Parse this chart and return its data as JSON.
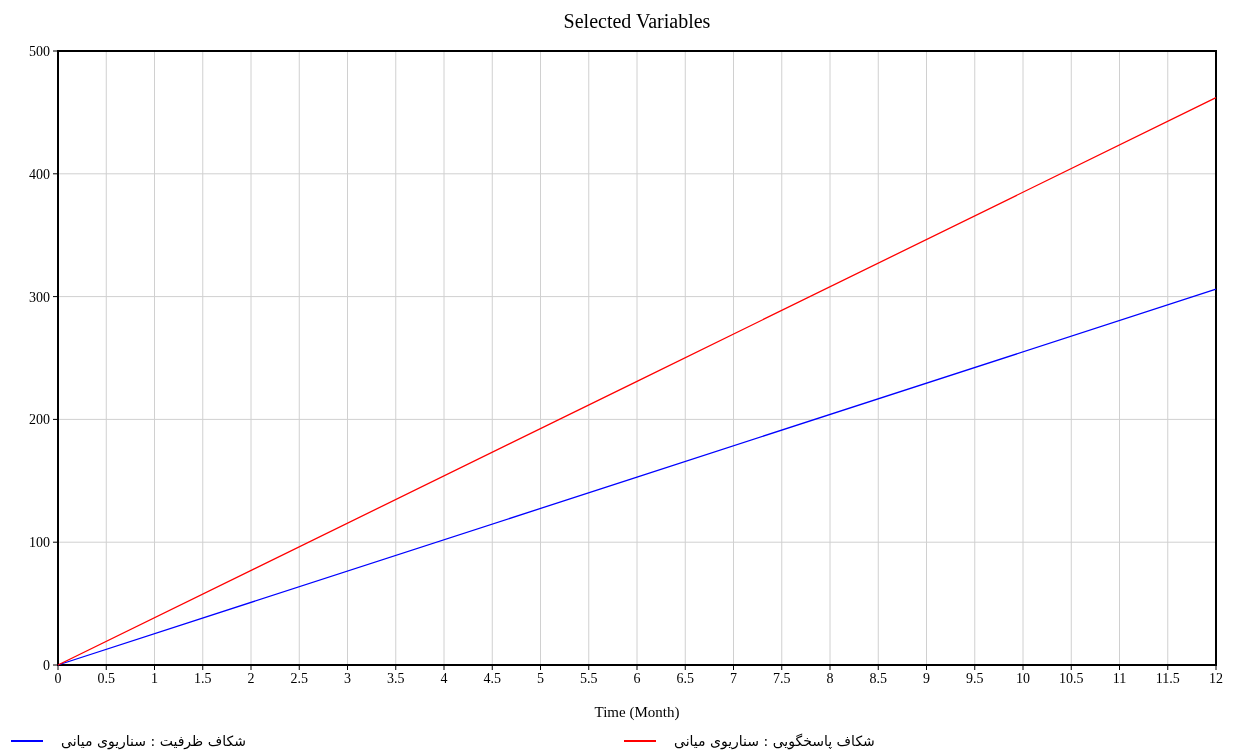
{
  "chart_data": {
    "type": "line",
    "title": "Selected Variables",
    "xlabel": "Time (Month)",
    "x": [
      0,
      6,
      12
    ],
    "series": [
      {
        "name": "شکاف ظرفیت : سناریوی میانی",
        "color": "#0000ff",
        "values": [
          0,
          153,
          306
        ]
      },
      {
        "name": "شکاف پاسخگویی : سناریوی میانی",
        "color": "#ff0000",
        "values": [
          0,
          231,
          462
        ]
      }
    ],
    "xlim": [
      0,
      12
    ],
    "xticks": [
      0,
      0.5,
      1,
      1.5,
      2,
      2.5,
      3,
      3.5,
      4,
      4.5,
      5,
      5.5,
      6,
      6.5,
      7,
      7.5,
      8,
      8.5,
      9,
      9.5,
      10,
      10.5,
      11,
      11.5,
      12
    ],
    "ylim": [
      0,
      500
    ],
    "yticks": [
      0,
      100,
      200,
      300,
      400,
      500
    ],
    "grid": true,
    "legend": "bottom",
    "line_style": "solid"
  }
}
